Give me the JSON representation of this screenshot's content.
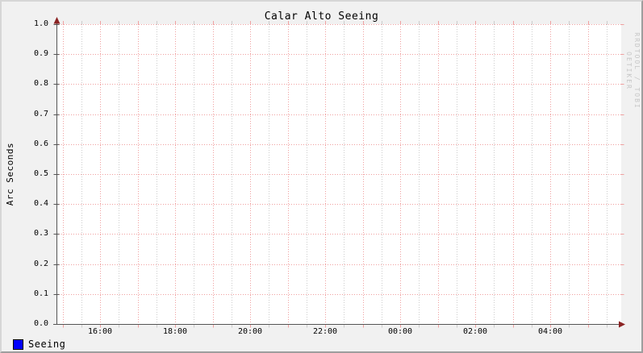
{
  "title": "Calar Alto Seeing",
  "watermark": "RRDTOOL / TOBI OETIKER",
  "legend": [
    {
      "label": "Seeing",
      "color": "#0000ff"
    }
  ],
  "chart_data": {
    "type": "line",
    "title": "Calar Alto Seeing",
    "xlabel": "",
    "ylabel": "Arc Seconds",
    "ylim": [
      0.0,
      1.0
    ],
    "y_tick_step": 0.1,
    "y_tick_labels": [
      "0.0",
      "0.1",
      "0.2",
      "0.3",
      "0.4",
      "0.5",
      "0.6",
      "0.7",
      "0.8",
      "0.9",
      "1.0"
    ],
    "x_tick_labels": [
      {
        "label": "16:00",
        "t": 0
      },
      {
        "label": "18:00",
        "t": 2
      },
      {
        "label": "20:00",
        "t": 4
      },
      {
        "label": "22:00",
        "t": 6
      },
      {
        "label": "00:00",
        "t": 8
      },
      {
        "label": "02:00",
        "t": 10
      },
      {
        "label": "04:00",
        "t": 12
      }
    ],
    "x_major_step_hours": 1,
    "x_minor_step_hours": 0.5,
    "grid": true,
    "legend_position": "bottom-left",
    "series": [
      {
        "name": "Seeing",
        "color": "#0000ff",
        "values": []
      }
    ],
    "colors": {
      "background": "#f1f1f1",
      "plot_background": "#ffffff",
      "major_grid": "#f0a0a0",
      "minor_grid": "#cccccc",
      "axis": "#555555",
      "arrow": "#8b2323",
      "text": "#000000",
      "watermark": "#c6c6c6"
    }
  }
}
